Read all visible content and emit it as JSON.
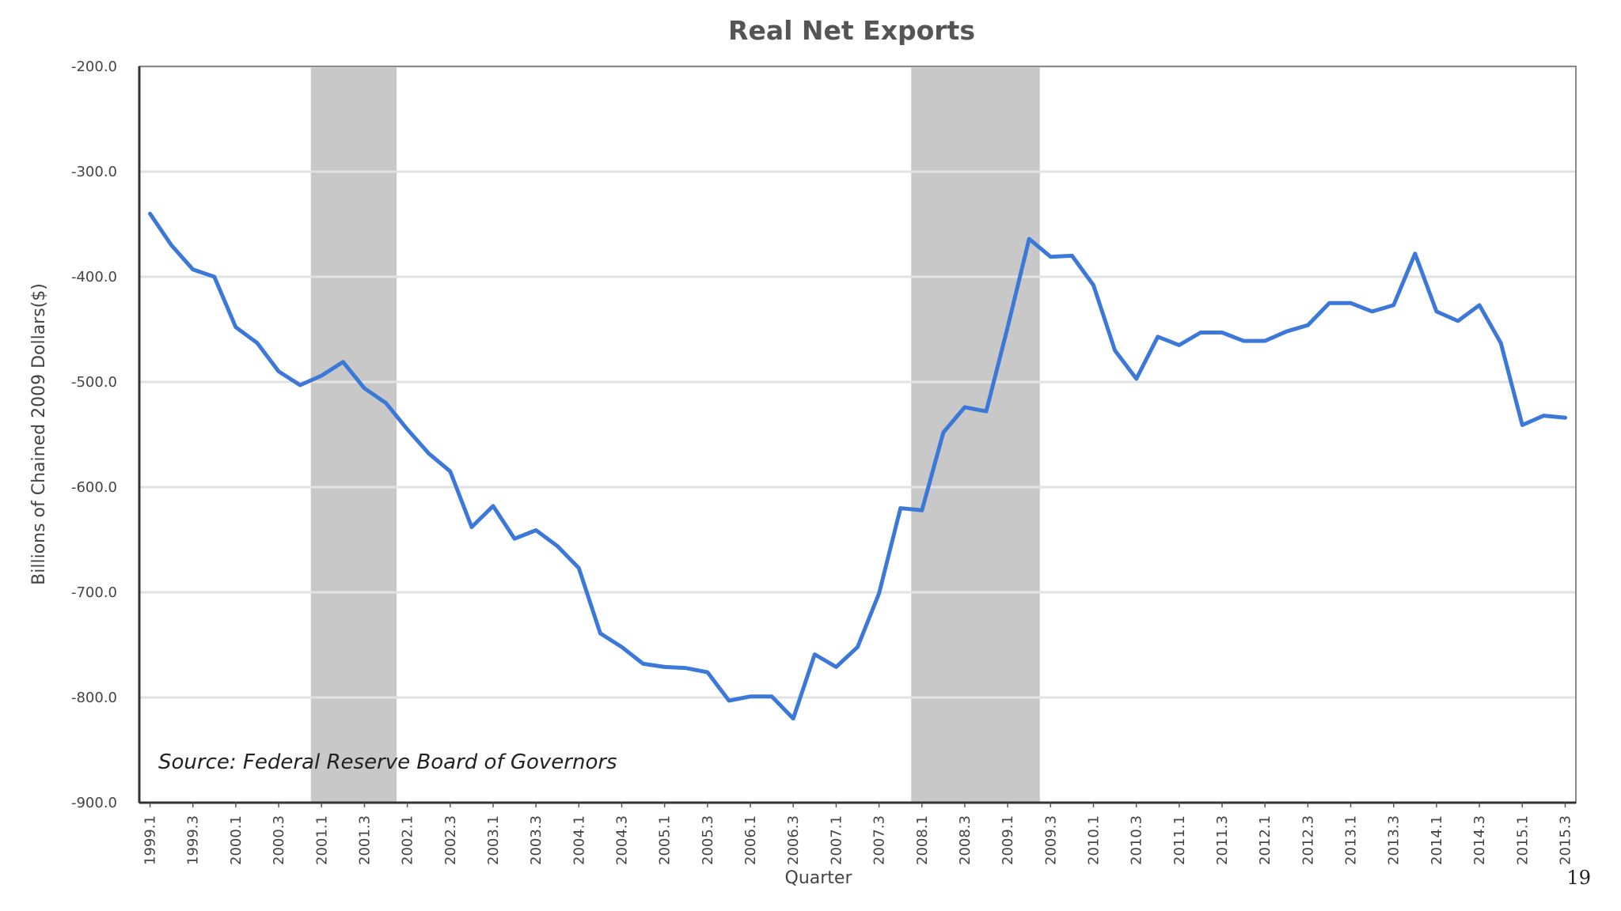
{
  "chart_data": {
    "type": "line",
    "title": "Real Net Exports",
    "xlabel": "Quarter",
    "ylabel": "Billions of Chained 2009 Dollars($)",
    "ylim": [
      -900,
      -200
    ],
    "yticks": [
      -200,
      -300,
      -400,
      -500,
      -600,
      -700,
      -800,
      -900
    ],
    "ytick_labels": [
      "-200.0",
      "-300.0",
      "-400.0",
      "-500.0",
      "-600.0",
      "-700.0",
      "-800.0",
      "-900.0"
    ],
    "xtick_labels": [
      "1999.1",
      "1999.3",
      "2000.1",
      "2000.3",
      "2001.1",
      "2001.3",
      "2002.1",
      "2002.3",
      "2003.1",
      "2003.3",
      "2004.1",
      "2004.3",
      "2005.1",
      "2005.3",
      "2006.1",
      "2006.3",
      "2007.1",
      "2007.3",
      "2008.1",
      "2008.3",
      "2009.1",
      "2009.3",
      "2010.1",
      "2010.3",
      "2011.1",
      "2011.3",
      "2012.1",
      "2012.3",
      "2013.1",
      "2013.3",
      "2014.1",
      "2014.3",
      "2015.1",
      "2015.3"
    ],
    "grid": true,
    "series": [
      {
        "name": "Real Net Exports",
        "color": "#3b78d8",
        "start_quarter": "1999.1",
        "values": [
          -340,
          -370,
          -393,
          -400,
          -448,
          -463,
          -490,
          -503,
          -494,
          -481,
          -506,
          -520,
          -545,
          -568,
          -585,
          -638,
          -618,
          -649,
          -641,
          -656,
          -677,
          -739,
          -752,
          -768,
          -771,
          -772,
          -776,
          -803,
          -799,
          -799,
          -820,
          -759,
          -771,
          -752,
          -701,
          -620,
          -622,
          -548,
          -524,
          -528,
          -448,
          -364,
          -381,
          -380,
          -408,
          -470,
          -497,
          -457,
          -465,
          -453,
          -453,
          -461,
          -461,
          -452,
          -446,
          -425,
          -425,
          -433,
          -427,
          -378,
          -433,
          -442,
          -427,
          -463,
          -541,
          -532,
          -534
        ]
      }
    ],
    "recessions": [
      {
        "start": "2001.1",
        "end": "2001.4"
      },
      {
        "start": "2008.1",
        "end": "2009.2"
      }
    ],
    "recession_color": "#c8c8c8",
    "annotation": "Source: Federal Reserve Board of Governors"
  },
  "page_number": "19"
}
